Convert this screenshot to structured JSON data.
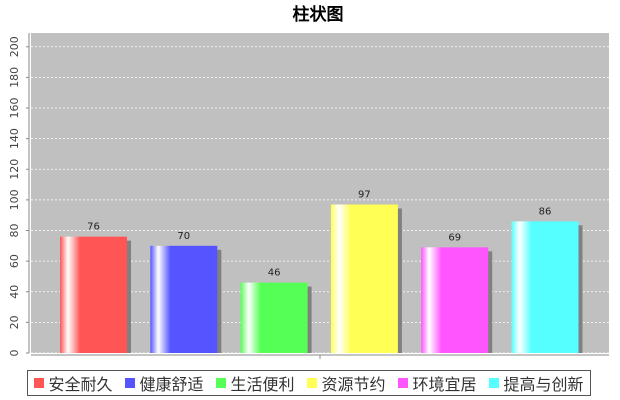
{
  "chart_data": {
    "type": "bar",
    "title": "柱状图",
    "categories": [
      null
    ],
    "series": [
      {
        "name": "安全耐久",
        "color": "#ff5555",
        "values": [
          76
        ]
      },
      {
        "name": "健康舒适",
        "color": "#5555ff",
        "values": [
          70
        ]
      },
      {
        "name": "生活便利",
        "color": "#55ff55",
        "values": [
          46
        ]
      },
      {
        "name": "资源节约",
        "color": "#ffff55",
        "values": [
          97
        ]
      },
      {
        "name": "环境宜居",
        "color": "#ff55ff",
        "values": [
          69
        ]
      },
      {
        "name": "提高与创新",
        "color": "#55ffff",
        "values": [
          86
        ]
      }
    ],
    "ylim": [
      0,
      209
    ],
    "yticks": [
      0,
      20,
      40,
      60,
      80,
      100,
      120,
      140,
      160,
      180,
      200
    ],
    "grid": true
  }
}
